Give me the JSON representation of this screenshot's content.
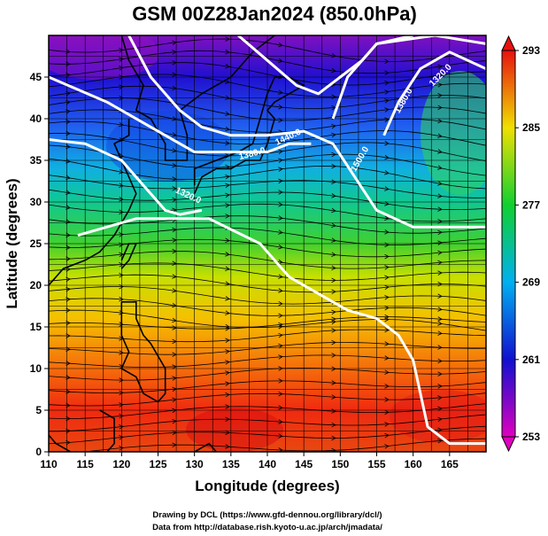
{
  "title": "GSM 00Z28Jan2024 (850.0hPa)",
  "credits": [
    "Drawing by DCL (https://www.gfd-dennou.org/library/dcl/)",
    "Data from http://database.rish.kyoto-u.ac.jp/arch/jmadata/"
  ],
  "chart_data": {
    "type": "heatmap",
    "subtype": "temperature field with streamlines and geopotential height contours",
    "xlabel": "Longitude (degrees)",
    "ylabel": "Latitude (degrees)",
    "xlim": [
      110,
      170
    ],
    "ylim": [
      0,
      50
    ],
    "x_ticks": [
      110,
      115,
      120,
      125,
      130,
      135,
      140,
      145,
      150,
      155,
      160,
      165
    ],
    "y_ticks": [
      0,
      5,
      10,
      15,
      20,
      25,
      30,
      35,
      40,
      45
    ],
    "grid": true,
    "colorbar": {
      "ticks": [
        253,
        261,
        269,
        277,
        285,
        293
      ],
      "range": [
        253,
        293
      ],
      "colors": [
        "#e000c0",
        "#0010d0",
        "#00a8f0",
        "#10d030",
        "#f0e000",
        "#e81010"
      ],
      "position": "right"
    },
    "contour_labels": [
      "1320.0",
      "1380.0",
      "1440.0",
      "1500.0",
      "1380.0",
      "1320.0"
    ],
    "contour_level_values": [
      1320,
      1380,
      1440,
      1500,
      1380,
      1320
    ],
    "temperature_by_latitude": [
      {
        "lat": 0,
        "value": 289
      },
      {
        "lat": 5,
        "value": 290
      },
      {
        "lat": 10,
        "value": 288
      },
      {
        "lat": 15,
        "value": 286
      },
      {
        "lat": 20,
        "value": 284
      },
      {
        "lat": 25,
        "value": 281
      },
      {
        "lat": 30,
        "value": 276
      },
      {
        "lat": 35,
        "value": 272
      },
      {
        "lat": 40,
        "value": 266
      },
      {
        "lat": 45,
        "value": 261
      },
      {
        "lat": 50,
        "value": 257
      }
    ]
  }
}
